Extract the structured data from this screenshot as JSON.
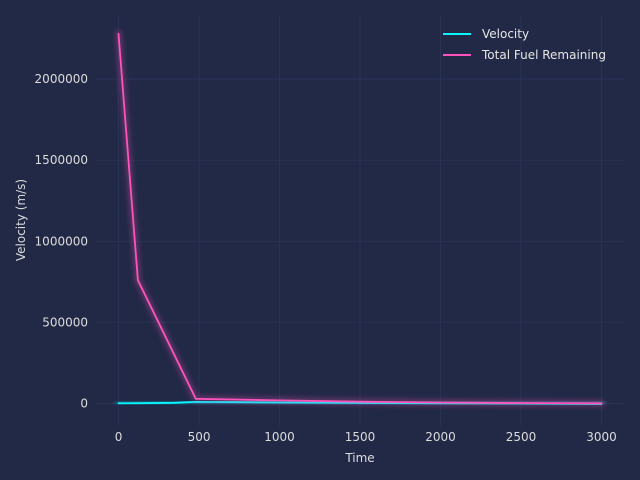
{
  "chart_data": {
    "type": "line",
    "title": "",
    "xlabel": "Time",
    "ylabel": "Velocity (m/s)",
    "xlim": [
      -140,
      3140
    ],
    "ylim": [
      -140000,
      2390000
    ],
    "xticks": [
      0,
      500,
      1000,
      1500,
      2000,
      2500,
      3000
    ],
    "yticks": [
      0,
      500000,
      1000000,
      1500000,
      2000000
    ],
    "xtick_labels": [
      "0",
      "500",
      "1000",
      "1500",
      "2000",
      "2500",
      "3000"
    ],
    "ytick_labels": [
      "0",
      "500000",
      "1000000",
      "1500000",
      "2000000"
    ],
    "grid": true,
    "legend_position": "top-right",
    "series": [
      {
        "name": "Velocity",
        "color": "#08F7FE",
        "x": [
          0,
          120,
          350,
          480,
          600,
          1000,
          1500,
          2000,
          2500,
          3000
        ],
        "y": [
          0,
          1000,
          3000,
          9000,
          8000,
          5000,
          2000,
          0,
          -2000,
          -4000
        ]
      },
      {
        "name": "Total Fuel Remaining",
        "color": "#FE53BB",
        "x": [
          0,
          120,
          480,
          1000,
          1500,
          2000,
          2500,
          3000
        ],
        "y": [
          2280000,
          760000,
          28000,
          18000,
          10000,
          5000,
          2000,
          0
        ]
      }
    ]
  }
}
